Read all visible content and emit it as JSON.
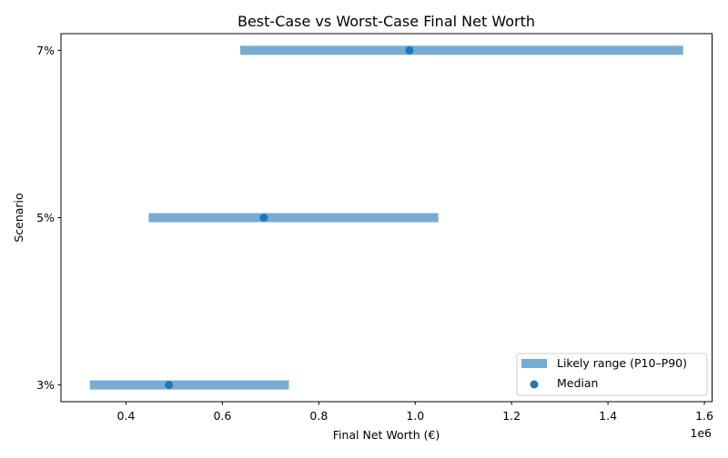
{
  "chart_data": {
    "type": "range",
    "title": "Best-Case vs Worst-Case Final Net Worth",
    "xlabel": "Final Net Worth (€)",
    "ylabel": "Scenario",
    "x_offset_label": "1e6",
    "xlim": [
      0.265,
      1.616
    ],
    "x_ticks": [
      0.4,
      0.6,
      0.8,
      1.0,
      1.2,
      1.4,
      1.6
    ],
    "x_tick_labels": [
      "0.4",
      "0.6",
      "0.8",
      "1.0",
      "1.2",
      "1.4",
      "1.6"
    ],
    "categories": [
      "3%",
      "5%",
      "7%"
    ],
    "series": [
      {
        "name": "Likely range (P10–P90)",
        "kind": "range",
        "color": "#76acd2",
        "low": [
          0.325,
          0.447,
          0.637
        ],
        "high": [
          0.738,
          1.048,
          1.556
        ]
      },
      {
        "name": "Median",
        "kind": "scatter",
        "color": "#1f77b4",
        "values": [
          0.489,
          0.686,
          0.988
        ]
      }
    ],
    "legend_position": "lower-right",
    "grid": false
  }
}
